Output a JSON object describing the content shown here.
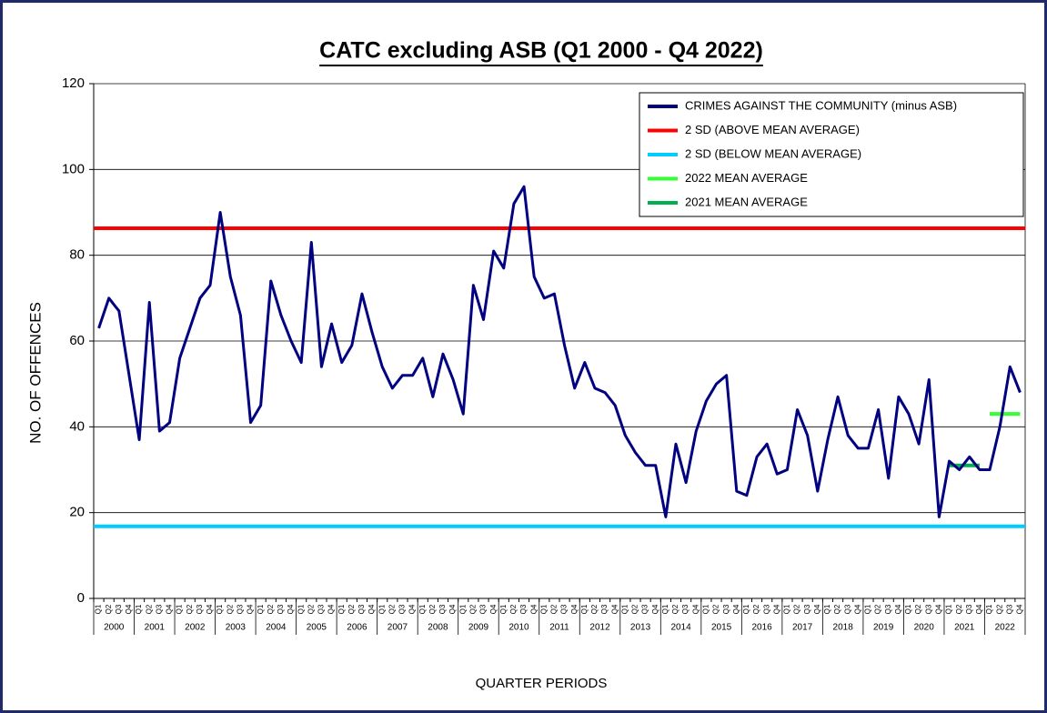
{
  "chart_data": {
    "type": "line",
    "title": "CATC excluding ASB (Q1 2000 - Q4 2022)",
    "ylabel": "NO. OF OFFENCES",
    "xlabel": "QUARTER PERIODS",
    "years": [
      "2000",
      "2001",
      "2002",
      "2003",
      "2004",
      "2005",
      "2006",
      "2007",
      "2008",
      "2009",
      "2010",
      "2011",
      "2012",
      "2013",
      "2014",
      "2015",
      "2016",
      "2017",
      "2018",
      "2019",
      "2020",
      "2021",
      "2022"
    ],
    "categories": [
      "Q1",
      "Q2",
      "Q3",
      "Q4",
      "Q1",
      "Q2",
      "Q3",
      "Q4",
      "Q1",
      "Q2",
      "Q3",
      "Q4",
      "Q1",
      "Q2",
      "Q3",
      "Q4",
      "Q1",
      "Q2",
      "Q3",
      "Q4",
      "Q1",
      "Q2",
      "Q3",
      "Q4",
      "Q1",
      "Q2",
      "Q3",
      "Q4",
      "Q1",
      "Q2",
      "Q3",
      "Q4",
      "Q1",
      "Q2",
      "Q3",
      "Q4",
      "Q1",
      "Q2",
      "Q3",
      "Q4",
      "Q1",
      "Q2",
      "Q3",
      "Q4",
      "Q1",
      "Q2",
      "Q3",
      "Q4",
      "Q1",
      "Q2",
      "Q3",
      "Q4",
      "Q1",
      "Q2",
      "Q3",
      "Q4",
      "Q1",
      "Q2",
      "Q3",
      "Q4",
      "Q1",
      "Q2",
      "Q3",
      "Q4",
      "Q1",
      "Q2",
      "Q3",
      "Q4",
      "Q1",
      "Q2",
      "Q3",
      "Q4",
      "Q1",
      "Q2",
      "Q3",
      "Q4",
      "Q1",
      "Q2",
      "Q3",
      "Q4",
      "Q1",
      "Q2",
      "Q3",
      "Q4",
      "Q1",
      "Q2",
      "Q3",
      "Q4",
      "Q1",
      "Q2",
      "Q3",
      "Q4"
    ],
    "series": [
      {
        "name": "CRIMES AGAINST THE COMMUNITY (minus ASB)",
        "color": "#000080",
        "values": [
          63,
          70,
          67,
          52,
          37,
          69,
          39,
          41,
          56,
          63,
          70,
          73,
          90,
          75,
          66,
          41,
          45,
          74,
          66,
          60,
          55,
          83,
          54,
          64,
          55,
          59,
          71,
          62,
          54,
          49,
          52,
          52,
          56,
          47,
          57,
          51,
          43,
          73,
          65,
          81,
          77,
          92,
          96,
          75,
          70,
          71,
          59,
          49,
          55,
          49,
          48,
          45,
          38,
          34,
          31,
          31,
          19,
          36,
          27,
          39,
          46,
          50,
          52,
          25,
          24,
          33,
          36,
          29,
          30,
          44,
          38,
          25,
          37,
          47,
          38,
          35,
          35,
          44,
          28,
          47,
          43,
          36,
          51,
          19,
          32,
          30,
          33,
          30,
          30,
          40,
          54,
          48
        ]
      },
      {
        "name": "2 SD (ABOVE MEAN AVERAGE)",
        "color": "#ff0000",
        "value": 86.3
      },
      {
        "name": "2 SD (BELOW MEAN AVERAGE)",
        "color": "#00ccff",
        "value": 16.8
      },
      {
        "name": "2022 MEAN AVERAGE",
        "color": "#33ff33",
        "values": [
          null,
          null,
          null,
          null,
          null,
          null,
          null,
          null,
          null,
          null,
          null,
          null,
          null,
          null,
          null,
          null,
          null,
          null,
          null,
          null,
          null,
          null,
          null,
          null,
          null,
          null,
          null,
          null,
          null,
          null,
          null,
          null,
          null,
          null,
          null,
          null,
          null,
          null,
          null,
          null,
          null,
          null,
          null,
          null,
          null,
          null,
          null,
          null,
          null,
          null,
          null,
          null,
          null,
          null,
          null,
          null,
          null,
          null,
          null,
          null,
          null,
          null,
          null,
          null,
          null,
          null,
          null,
          null,
          null,
          null,
          null,
          null,
          null,
          null,
          null,
          null,
          null,
          null,
          null,
          null,
          null,
          null,
          null,
          null,
          null,
          null,
          null,
          null,
          43,
          43,
          43,
          43
        ]
      },
      {
        "name": "2021 MEAN AVERAGE",
        "color": "#00b050",
        "values": [
          null,
          null,
          null,
          null,
          null,
          null,
          null,
          null,
          null,
          null,
          null,
          null,
          null,
          null,
          null,
          null,
          null,
          null,
          null,
          null,
          null,
          null,
          null,
          null,
          null,
          null,
          null,
          null,
          null,
          null,
          null,
          null,
          null,
          null,
          null,
          null,
          null,
          null,
          null,
          null,
          null,
          null,
          null,
          null,
          null,
          null,
          null,
          null,
          null,
          null,
          null,
          null,
          null,
          null,
          null,
          null,
          null,
          null,
          null,
          null,
          null,
          null,
          null,
          null,
          null,
          null,
          null,
          null,
          null,
          null,
          null,
          null,
          null,
          null,
          null,
          null,
          null,
          null,
          null,
          null,
          null,
          null,
          null,
          null,
          31,
          31,
          31,
          31,
          null,
          null,
          null,
          null
        ]
      }
    ],
    "ylim": [
      0,
      120
    ],
    "yticks": [
      0,
      20,
      40,
      60,
      80,
      100,
      120
    ],
    "grid": true,
    "legend": "upper right"
  }
}
